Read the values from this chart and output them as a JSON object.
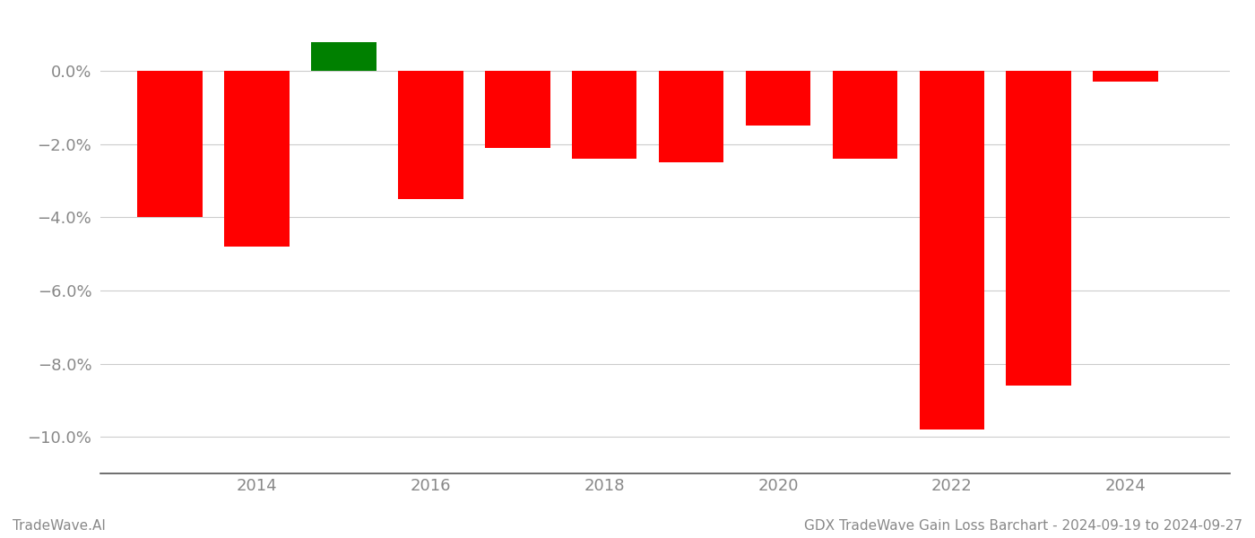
{
  "years": [
    2013,
    2014,
    2015,
    2016,
    2017,
    2018,
    2019,
    2020,
    2021,
    2022,
    2023,
    2024
  ],
  "values": [
    -4.0,
    -4.8,
    0.8,
    -3.5,
    -2.1,
    -2.4,
    -2.5,
    -1.5,
    -2.4,
    -9.8,
    -8.6,
    -0.3
  ],
  "colors": [
    "#ff0000",
    "#ff0000",
    "#008000",
    "#ff0000",
    "#ff0000",
    "#ff0000",
    "#ff0000",
    "#ff0000",
    "#ff0000",
    "#ff0000",
    "#ff0000",
    "#ff0000"
  ],
  "ylim": [
    -11.0,
    1.5
  ],
  "yticks": [
    0.0,
    -2.0,
    -4.0,
    -6.0,
    -8.0,
    -10.0
  ],
  "xtick_labels": [
    "2014",
    "2016",
    "2018",
    "2020",
    "2022",
    "2024"
  ],
  "xtick_positions": [
    2014,
    2016,
    2018,
    2020,
    2022,
    2024
  ],
  "footer_left": "TradeWave.AI",
  "footer_right": "GDX TradeWave Gain Loss Barchart - 2024-09-19 to 2024-09-27",
  "bar_width": 0.75,
  "background_color": "#ffffff",
  "grid_color": "#cccccc",
  "tick_label_color": "#888888",
  "footer_color": "#888888",
  "xlim_left": 2012.2,
  "xlim_right": 2025.2
}
